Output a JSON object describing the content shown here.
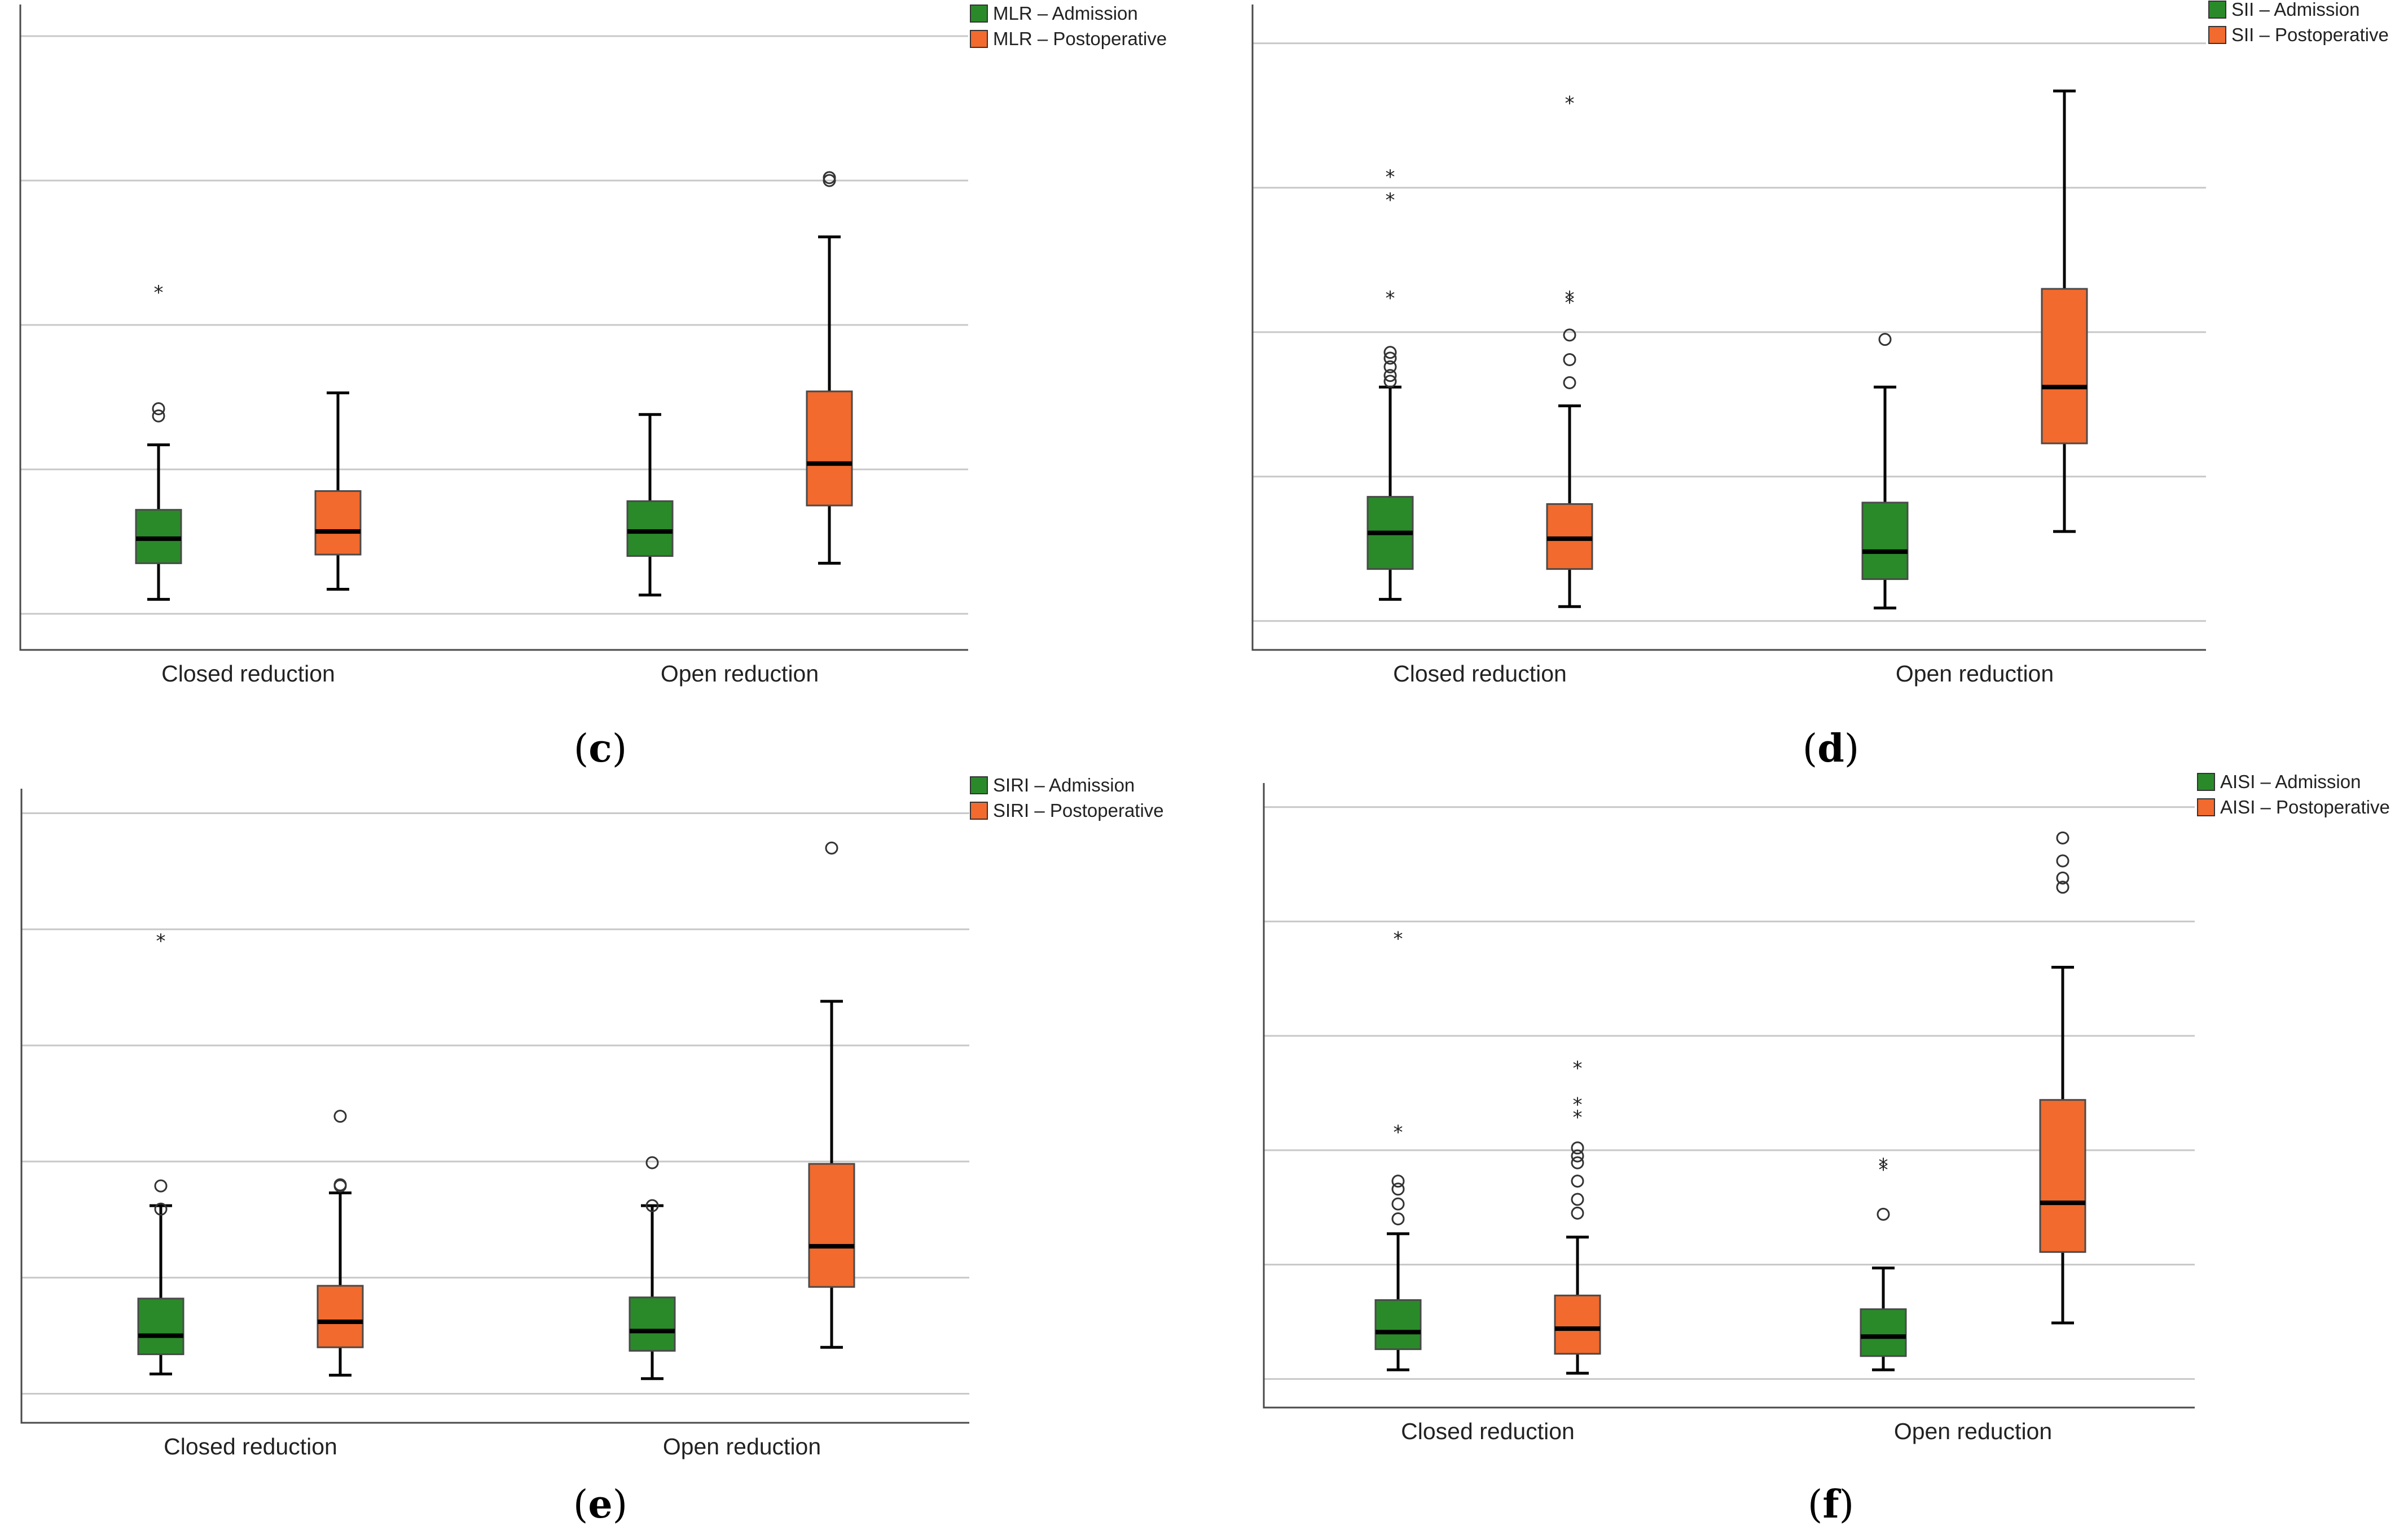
{
  "colors": {
    "admission": "#2a8a2a",
    "postoperative": "#f26a2d",
    "grid": "#c8c8c8",
    "axis": "#4a4a4a"
  },
  "chart_data": [
    {
      "type": "boxplot",
      "panel_label": "c",
      "categories": [
        "Closed reduction",
        "Open reduction"
      ],
      "ylim": [
        0,
        4.5
      ],
      "gridlines": [
        0.25,
        1.25,
        2.25,
        3.25,
        4.25
      ],
      "grid": true,
      "legend_position": "top-right",
      "series": [
        {
          "name": "MLR – Admission",
          "color_key": "admission",
          "boxes": [
            {
              "whisker_low": 0.35,
              "q1": 0.6,
              "median": 0.77,
              "q3": 0.97,
              "whisker_high": 1.42,
              "outliers_circle": [
                1.62,
                1.67
              ],
              "outliers_star": [
                2.5
              ]
            },
            {
              "whisker_low": 0.38,
              "q1": 0.65,
              "median": 0.82,
              "q3": 1.03,
              "whisker_high": 1.63,
              "outliers_circle": [],
              "outliers_star": []
            }
          ]
        },
        {
          "name": "MLR – Postoperative",
          "color_key": "postoperative",
          "boxes": [
            {
              "whisker_low": 0.42,
              "q1": 0.66,
              "median": 0.82,
              "q3": 1.1,
              "whisker_high": 1.78,
              "outliers_circle": [],
              "outliers_star": []
            },
            {
              "whisker_low": 0.6,
              "q1": 1.0,
              "median": 1.29,
              "q3": 1.79,
              "whisker_high": 2.86,
              "outliers_circle": [
                3.25,
                3.27
              ],
              "outliers_star": []
            }
          ]
        }
      ]
    },
    {
      "type": "boxplot",
      "panel_label": "d",
      "categories": [
        "Closed reduction",
        "Open reduction"
      ],
      "ylim": [
        0,
        4.5
      ],
      "gridlines": [
        0.2,
        1.2,
        2.2,
        3.2,
        4.2
      ],
      "grid": true,
      "legend_position": "top-right",
      "series": [
        {
          "name": "SII – Admission",
          "color_key": "admission",
          "boxes": [
            {
              "whisker_low": 0.35,
              "q1": 0.56,
              "median": 0.81,
              "q3": 1.06,
              "whisker_high": 1.82,
              "outliers_circle": [
                1.86,
                1.9,
                1.96,
                2.02,
                2.06
              ],
              "outliers_star": [
                2.46,
                3.14,
                3.3
              ]
            },
            {
              "whisker_low": 0.29,
              "q1": 0.49,
              "median": 0.68,
              "q3": 1.02,
              "whisker_high": 1.82,
              "outliers_circle": [
                2.15
              ],
              "outliers_star": []
            }
          ]
        },
        {
          "name": "SII – Postoperative",
          "color_key": "postoperative",
          "boxes": [
            {
              "whisker_low": 0.3,
              "q1": 0.56,
              "median": 0.77,
              "q3": 1.01,
              "whisker_high": 1.69,
              "outliers_circle": [
                1.85,
                2.01,
                2.18
              ],
              "outliers_star": [
                2.43,
                2.46,
                3.81
              ]
            },
            {
              "whisker_low": 0.82,
              "q1": 1.43,
              "median": 1.82,
              "q3": 2.5,
              "whisker_high": 3.87,
              "outliers_circle": [],
              "outliers_star": []
            }
          ]
        }
      ]
    },
    {
      "type": "boxplot",
      "panel_label": "e",
      "categories": [
        "Closed reduction",
        "Open reduction"
      ],
      "ylim": [
        0,
        5.5
      ],
      "gridlines": [
        0.25,
        1.25,
        2.25,
        3.25,
        4.25,
        5.25
      ],
      "grid": true,
      "legend_position": "top-right",
      "series": [
        {
          "name": "SIRI – Admission",
          "color_key": "admission",
          "boxes": [
            {
              "whisker_low": 0.42,
              "q1": 0.59,
              "median": 0.75,
              "q3": 1.07,
              "whisker_high": 1.87,
              "outliers_circle": [
                1.84,
                2.04
              ],
              "outliers_star": [
                4.18
              ]
            },
            {
              "whisker_low": 0.38,
              "q1": 0.62,
              "median": 0.79,
              "q3": 1.08,
              "whisker_high": 1.87,
              "outliers_circle": [
                1.87,
                2.24
              ],
              "outliers_star": []
            }
          ]
        },
        {
          "name": "SIRI – Postoperative",
          "color_key": "postoperative",
          "boxes": [
            {
              "whisker_low": 0.41,
              "q1": 0.65,
              "median": 0.87,
              "q3": 1.18,
              "whisker_high": 1.98,
              "outliers_circle": [
                2.04,
                2.05,
                2.64
              ],
              "outliers_star": []
            },
            {
              "whisker_low": 0.65,
              "q1": 1.17,
              "median": 1.52,
              "q3": 2.23,
              "whisker_high": 3.63,
              "outliers_circle": [
                4.95
              ],
              "outliers_star": []
            }
          ]
        }
      ]
    },
    {
      "type": "boxplot",
      "panel_label": "f",
      "categories": [
        "Closed reduction",
        "Open reduction"
      ],
      "ylim": [
        0,
        5.5
      ],
      "gridlines": [
        0.25,
        1.25,
        2.25,
        3.25,
        4.25,
        5.25
      ],
      "grid": true,
      "legend_position": "top-right",
      "series": [
        {
          "name": "AISI – Admission",
          "color_key": "admission",
          "boxes": [
            {
              "whisker_low": 0.33,
              "q1": 0.51,
              "median": 0.66,
              "q3": 0.94,
              "whisker_high": 1.52,
              "outliers_circle": [
                1.65,
                1.78,
                1.91,
                1.98
              ],
              "outliers_star": [
                2.44,
                4.13
              ]
            },
            {
              "whisker_low": 0.33,
              "q1": 0.45,
              "median": 0.62,
              "q3": 0.86,
              "whisker_high": 1.22,
              "outliers_circle": [
                1.69
              ],
              "outliers_star": [
                2.11,
                2.15
              ]
            }
          ]
        },
        {
          "name": "AISI – Postoperative",
          "color_key": "postoperative",
          "boxes": [
            {
              "whisker_low": 0.3,
              "q1": 0.47,
              "median": 0.69,
              "q3": 0.98,
              "whisker_high": 1.49,
              "outliers_circle": [
                1.7,
                1.82,
                1.98,
                2.14,
                2.2,
                2.27
              ],
              "outliers_star": [
                2.57,
                2.68,
                3.0
              ]
            },
            {
              "whisker_low": 0.74,
              "q1": 1.36,
              "median": 1.79,
              "q3": 2.69,
              "whisker_high": 3.85,
              "outliers_circle": [
                4.55,
                4.63,
                4.78,
                4.98
              ],
              "outliers_star": []
            }
          ]
        }
      ]
    }
  ]
}
